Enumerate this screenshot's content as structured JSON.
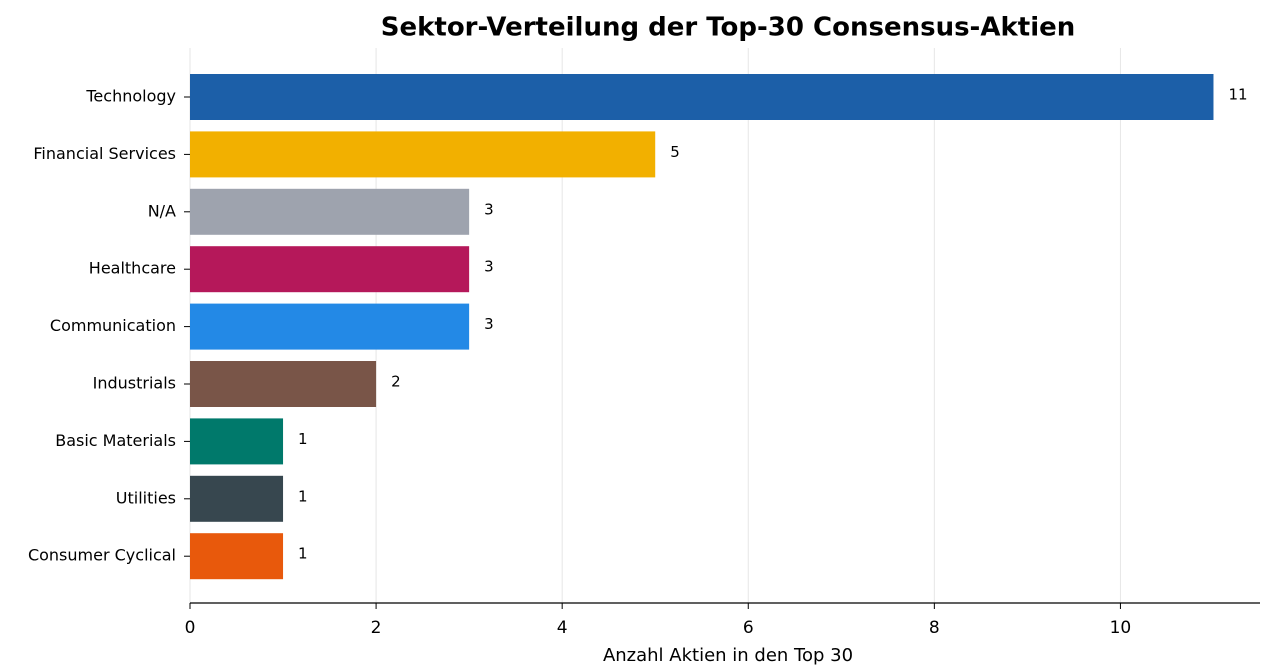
{
  "chart_data": {
    "type": "barh",
    "title": "Sektor-Verteilung der Top-30 Consensus-Aktien",
    "xlabel": "Anzahl Aktien in den Top 30",
    "categories": [
      "Technology",
      "Financial Services",
      "N/A",
      "Healthcare",
      "Communication",
      "Industrials",
      "Basic Materials",
      "Utilities",
      "Consumer Cyclical"
    ],
    "values": [
      11,
      5,
      3,
      3,
      3,
      2,
      1,
      1,
      1
    ],
    "colors": [
      "#1c5fa8",
      "#f2b000",
      "#9ea3ae",
      "#b5185a",
      "#2389e6",
      "#795548",
      "#00796b",
      "#37474f",
      "#e8590c"
    ],
    "xlim": [
      0,
      11.5
    ],
    "xticks": [
      0,
      2,
      4,
      6,
      8,
      10
    ],
    "grid": true
  }
}
